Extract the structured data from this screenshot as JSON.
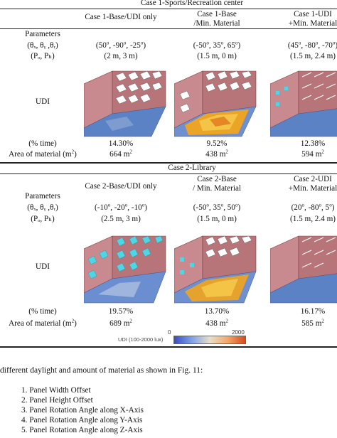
{
  "case1": {
    "title": "Case 1-Sports/Recreation center",
    "col_headers": [
      [
        "Case 1-Base/UDI only",
        ""
      ],
      [
        "Case 1-Base",
        "/Min. Material"
      ],
      [
        "Case 1-UDI",
        "+Min. Material"
      ]
    ],
    "parameters_label": "Parameters",
    "theta_label": "(θₓ, θᵧ ,θᵣ)",
    "p_label": "(Pₒ, Pₕ)",
    "udi_label": "UDI",
    "time_label": "(% time)",
    "area_label": "Area of material (m",
    "area_sup": "2",
    "area_close": ")",
    "cols": [
      {
        "theta": [
          "(50",
          ", -90",
          ", -25",
          ")"
        ],
        "p": "(2 m, 3 m)",
        "time": "14.30%",
        "area": "664 m"
      },
      {
        "theta": [
          "(-50",
          ", 35",
          ", 65",
          ")"
        ],
        "p": "(1.5 m, 0 m)",
        "time": "9.52%",
        "area": "438 m"
      },
      {
        "theta": [
          "(45",
          ", -80",
          ", -70",
          ")"
        ],
        "p": "(1.5 m, 2.4 m)",
        "time": "12.38%",
        "area": "594 m"
      }
    ]
  },
  "case2": {
    "title": "Case 2-Library",
    "col_headers": [
      [
        "Case 2-Base/UDI only",
        ""
      ],
      [
        "Case 2-Base",
        "/ Min. Material"
      ],
      [
        "Case 2-UDI",
        "+Min. Material"
      ]
    ],
    "parameters_label": "Parameters",
    "theta_label": "(θₓ, θᵧ ,θᵣ)",
    "p_label": "(Pₒ, Pₕ)",
    "udi_label": "UDI",
    "time_label": "(% time)",
    "area_label": "Area of material (m",
    "area_sup": "2",
    "area_close": ")",
    "cols": [
      {
        "theta": [
          "(-10",
          ", -20",
          ", -10",
          ")"
        ],
        "p": "(2.5 m, 3 m)",
        "time": "19.57%",
        "area": "689 m"
      },
      {
        "theta": [
          "(-50",
          ", 35",
          ", 50",
          ")"
        ],
        "p": "(1.5 m, 0 m)",
        "time": "13.70%",
        "area": "438 m"
      },
      {
        "theta": [
          "(20",
          ", -80",
          ", 5",
          ")"
        ],
        "p": "(1.5 m, 2.4 m)",
        "time": "16.17%",
        "area": "585 m"
      }
    ]
  },
  "colorbar": {
    "min": "0",
    "max": "2000",
    "label": "UDI (100-2000 lux)"
  },
  "body": {
    "intro": "different daylight and amount of material as shown in Fig. 11:",
    "items": [
      "1. Panel Width Offset",
      "2. Panel Height Offset",
      "3. Panel Rotation Angle along X-Axis",
      "4. Panel Rotation Angle along Y-Axis",
      "5. Panel Rotation Angle along Z-Axis"
    ]
  },
  "colors": {
    "wall": "#c98a8f",
    "wall_dark": "#9a5a60",
    "floor_blue": "#5b82c4",
    "floor_hot": "#f2a51c",
    "panel_cyan": "#4fd6e6"
  },
  "degree": "o"
}
